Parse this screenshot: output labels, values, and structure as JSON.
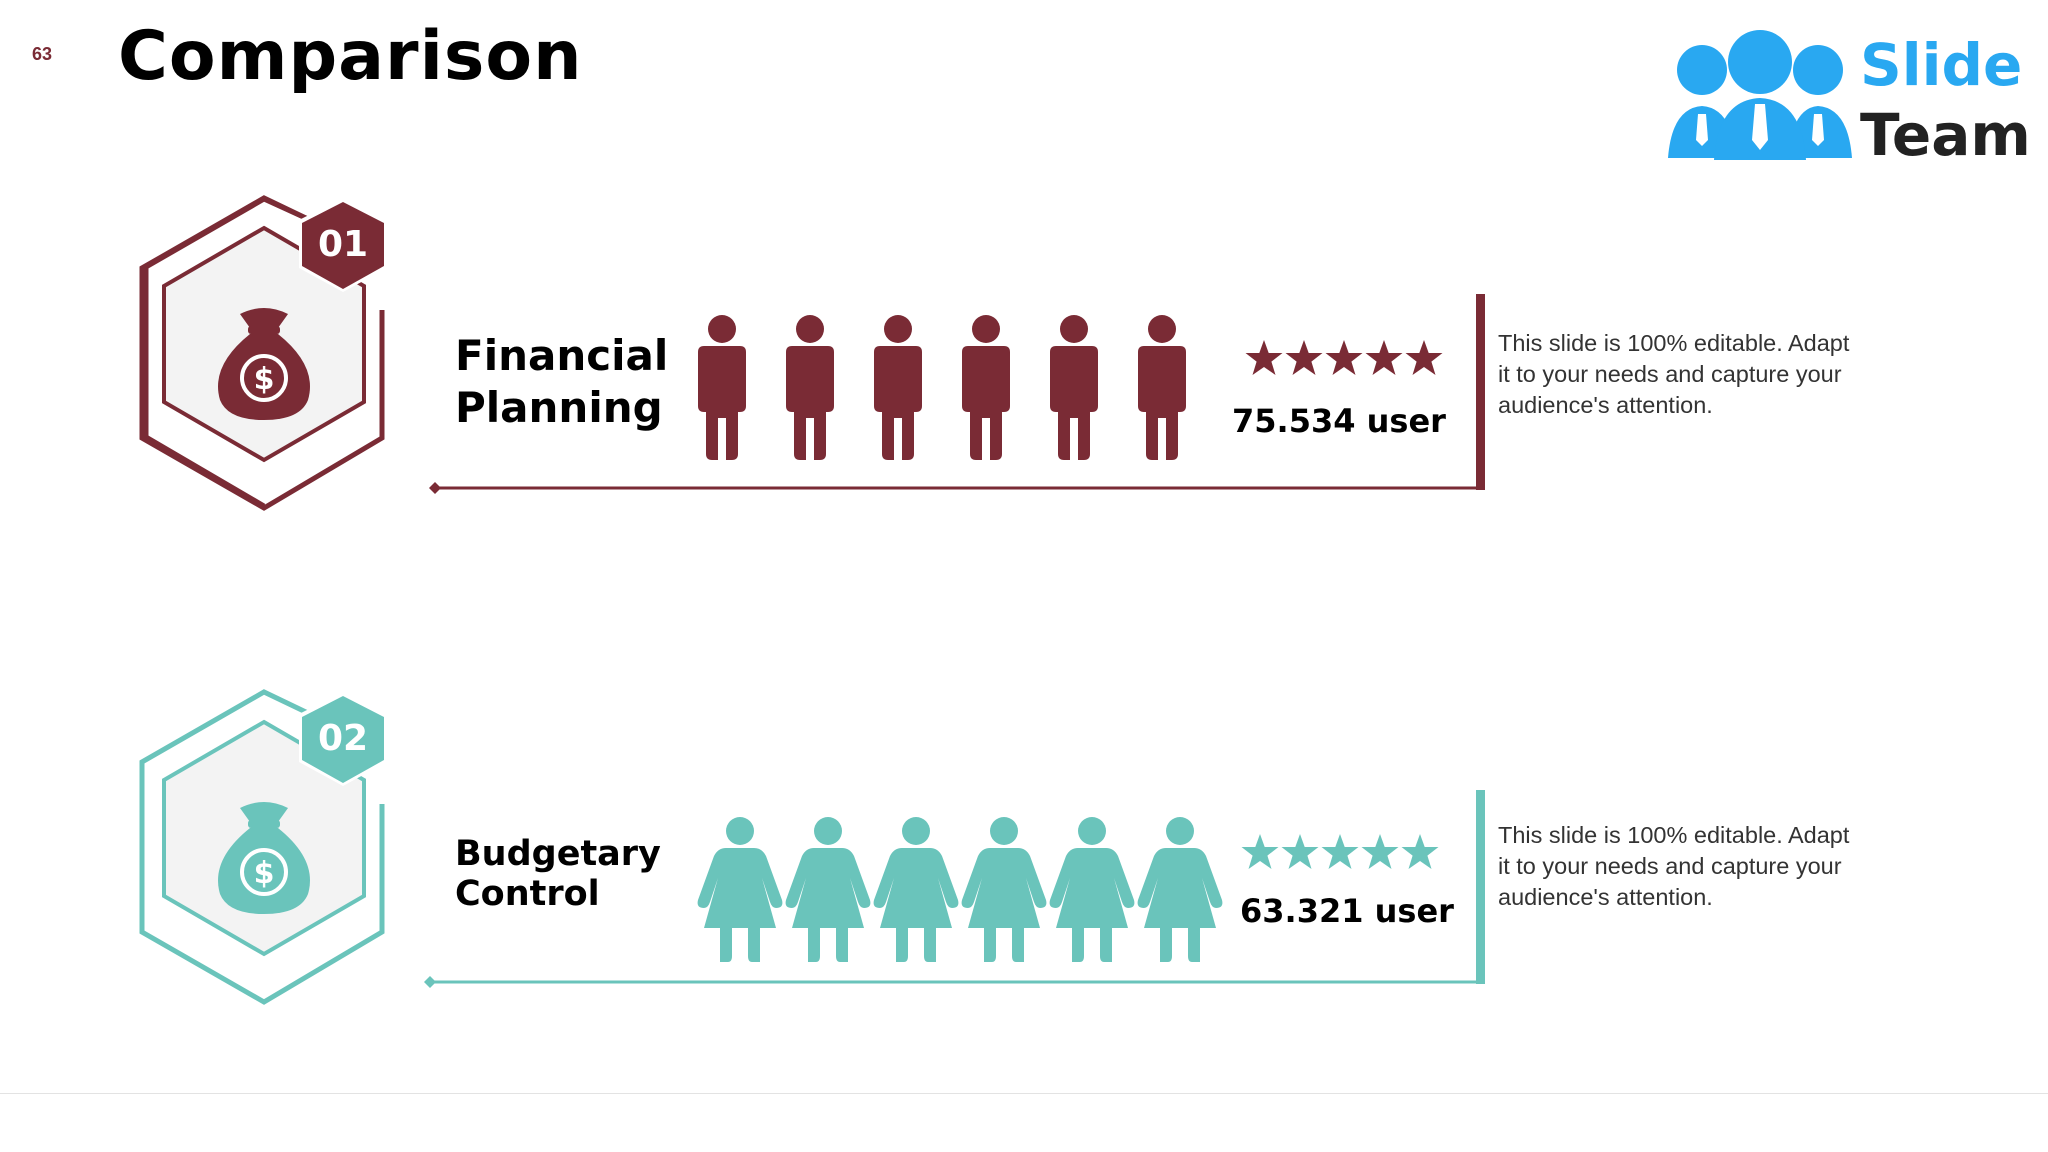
{
  "slide": {
    "number": "63",
    "title": "Comparison"
  },
  "logo": {
    "word1": "Slide",
    "word2": "Team",
    "colors": {
      "people": "#29a8f1",
      "text1": "#29a8f1",
      "text2": "#222222"
    }
  },
  "rows": [
    {
      "badge": "01",
      "title_lines": [
        "Financial",
        "Planning"
      ],
      "icon": "money-bag-dollar-icon",
      "figure": "male-person-icon",
      "figure_count": 6,
      "stars": 5,
      "user_count": "75.534 user",
      "description_lines": [
        "This slide is 100% editable. Adapt",
        "it to your needs and capture your",
        "audience's attention."
      ],
      "color": "#7a2b35"
    },
    {
      "badge": "02",
      "title_lines": [
        "Budgetary",
        "Control"
      ],
      "icon": "money-bag-dollar-icon",
      "figure": "female-person-icon",
      "figure_count": 6,
      "stars": 5,
      "user_count": "63.321 user",
      "description_lines": [
        "This slide is 100% editable. Adapt",
        "it to your needs and capture your",
        "audience's attention."
      ],
      "color": "#6ac4bb"
    }
  ]
}
